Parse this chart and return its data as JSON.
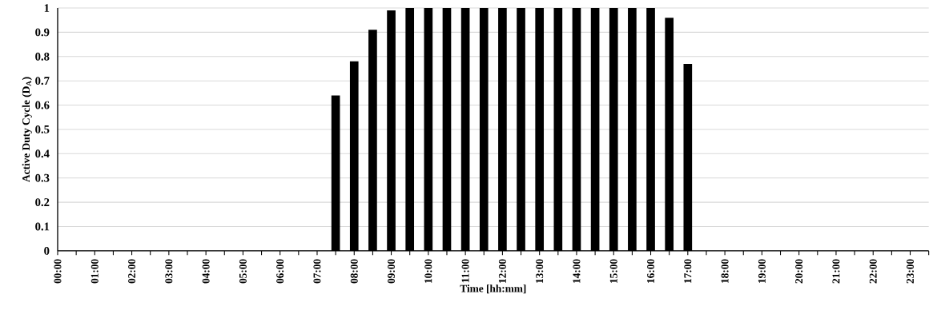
{
  "chart_data": {
    "type": "bar",
    "xlabel": "Time [hh:mm]",
    "ylabel": "Active Duty Cycle (D$_{A}$)",
    "categories": [
      "00:00",
      null,
      "01:00",
      null,
      "02:00",
      null,
      "03:00",
      null,
      "04:00",
      null,
      "05:00",
      null,
      "06:00",
      null,
      "07:00",
      null,
      "08:00",
      null,
      "09:00",
      null,
      "10:00",
      null,
      "11:00",
      null,
      "12:00",
      null,
      "13:00",
      null,
      "14:00",
      null,
      "15:00",
      null,
      "16:00",
      null,
      "17:00",
      null,
      "18:00",
      null,
      "19:00",
      null,
      "20:00",
      null,
      "21:00",
      null,
      "22:00",
      null,
      "23:00",
      null
    ],
    "values": [
      0,
      0,
      0,
      0,
      0,
      0,
      0,
      0,
      0,
      0,
      0,
      0,
      0,
      0,
      0,
      0.64,
      0.78,
      0.91,
      0.99,
      1,
      1,
      1,
      1,
      1,
      1,
      1,
      1,
      1,
      1,
      1,
      1,
      1,
      1,
      0.96,
      0.77,
      0,
      0,
      0,
      0,
      0,
      0,
      0,
      0,
      0,
      0,
      0,
      0,
      0
    ],
    "color": "#000000",
    "ylim": [
      0,
      1
    ],
    "yticks": [
      0,
      0.1,
      0.2,
      0.3,
      0.4,
      0.5,
      0.6,
      0.7,
      0.8,
      0.9,
      1
    ],
    "grid": "y"
  }
}
